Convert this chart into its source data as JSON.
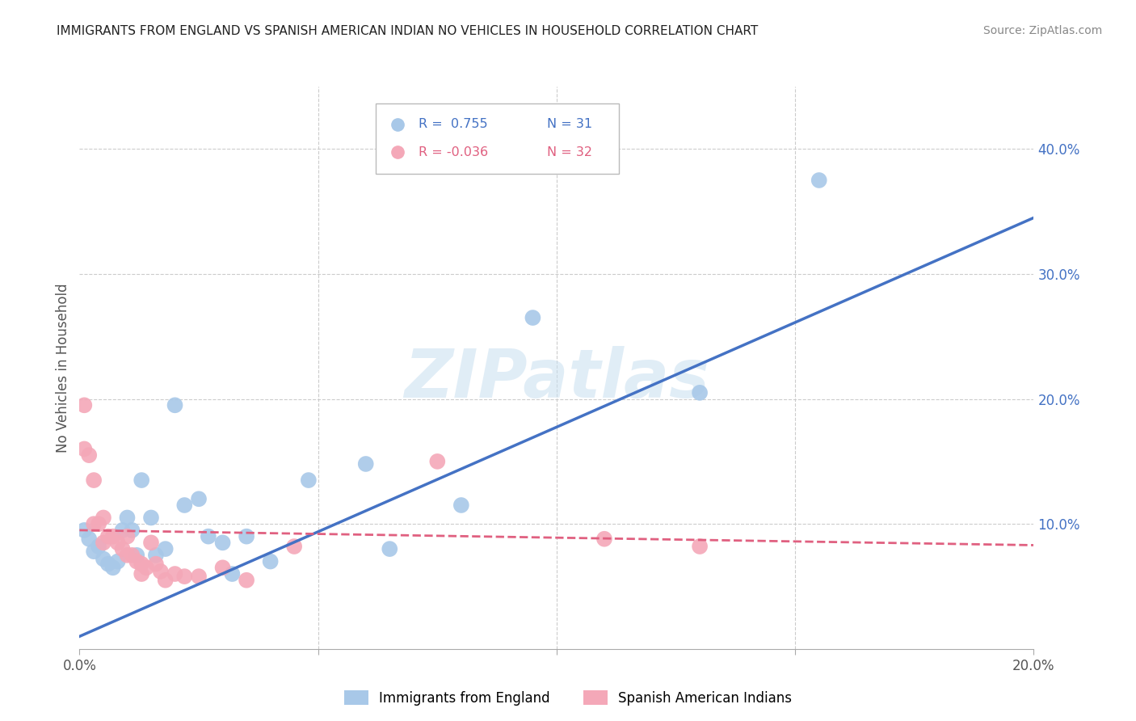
{
  "title": "IMMIGRANTS FROM ENGLAND VS SPANISH AMERICAN INDIAN NO VEHICLES IN HOUSEHOLD CORRELATION CHART",
  "source": "Source: ZipAtlas.com",
  "ylabel": "No Vehicles in Household",
  "x_min": 0.0,
  "x_max": 0.2,
  "y_min": 0.0,
  "y_max": 0.45,
  "x_ticks": [
    0.0,
    0.05,
    0.1,
    0.15,
    0.2
  ],
  "x_tick_labels": [
    "0.0%",
    "",
    "",
    "",
    "20.0%"
  ],
  "y_ticks_right": [
    0.1,
    0.2,
    0.3,
    0.4
  ],
  "y_tick_labels_right": [
    "10.0%",
    "20.0%",
    "30.0%",
    "40.0%"
  ],
  "legend_blue_r": "R =  0.755",
  "legend_blue_n": "N = 31",
  "legend_pink_r": "R = -0.036",
  "legend_pink_n": "N = 32",
  "blue_color": "#A8C8E8",
  "pink_color": "#F4A8B8",
  "blue_line_color": "#4472C4",
  "pink_line_color": "#E06080",
  "watermark": "ZIPatlas",
  "blue_scatter_x": [
    0.001,
    0.002,
    0.003,
    0.004,
    0.005,
    0.006,
    0.007,
    0.008,
    0.009,
    0.01,
    0.011,
    0.012,
    0.013,
    0.015,
    0.016,
    0.018,
    0.02,
    0.022,
    0.025,
    0.027,
    0.03,
    0.032,
    0.035,
    0.04,
    0.048,
    0.06,
    0.065,
    0.08,
    0.095,
    0.13,
    0.155
  ],
  "blue_scatter_y": [
    0.095,
    0.088,
    0.078,
    0.082,
    0.072,
    0.068,
    0.065,
    0.07,
    0.095,
    0.105,
    0.095,
    0.075,
    0.135,
    0.105,
    0.075,
    0.08,
    0.195,
    0.115,
    0.12,
    0.09,
    0.085,
    0.06,
    0.09,
    0.07,
    0.135,
    0.148,
    0.08,
    0.115,
    0.265,
    0.205,
    0.375
  ],
  "pink_scatter_x": [
    0.001,
    0.001,
    0.002,
    0.003,
    0.003,
    0.004,
    0.005,
    0.005,
    0.006,
    0.007,
    0.008,
    0.009,
    0.01,
    0.01,
    0.011,
    0.012,
    0.013,
    0.013,
    0.014,
    0.015,
    0.016,
    0.017,
    0.018,
    0.02,
    0.022,
    0.025,
    0.03,
    0.035,
    0.045,
    0.075,
    0.11,
    0.13
  ],
  "pink_scatter_y": [
    0.195,
    0.16,
    0.155,
    0.135,
    0.1,
    0.1,
    0.105,
    0.085,
    0.09,
    0.09,
    0.085,
    0.08,
    0.09,
    0.075,
    0.075,
    0.07,
    0.068,
    0.06,
    0.065,
    0.085,
    0.068,
    0.062,
    0.055,
    0.06,
    0.058,
    0.058,
    0.065,
    0.055,
    0.082,
    0.15,
    0.088,
    0.082
  ],
  "blue_trend_x": [
    0.0,
    0.2
  ],
  "blue_trend_y": [
    0.01,
    0.345
  ],
  "pink_trend_x": [
    0.0,
    0.2
  ],
  "pink_trend_y": [
    0.095,
    0.083
  ],
  "grid_color": "#CCCCCC",
  "background_color": "#FFFFFF",
  "legend_label_blue": "Immigrants from England",
  "legend_label_pink": "Spanish American Indians"
}
